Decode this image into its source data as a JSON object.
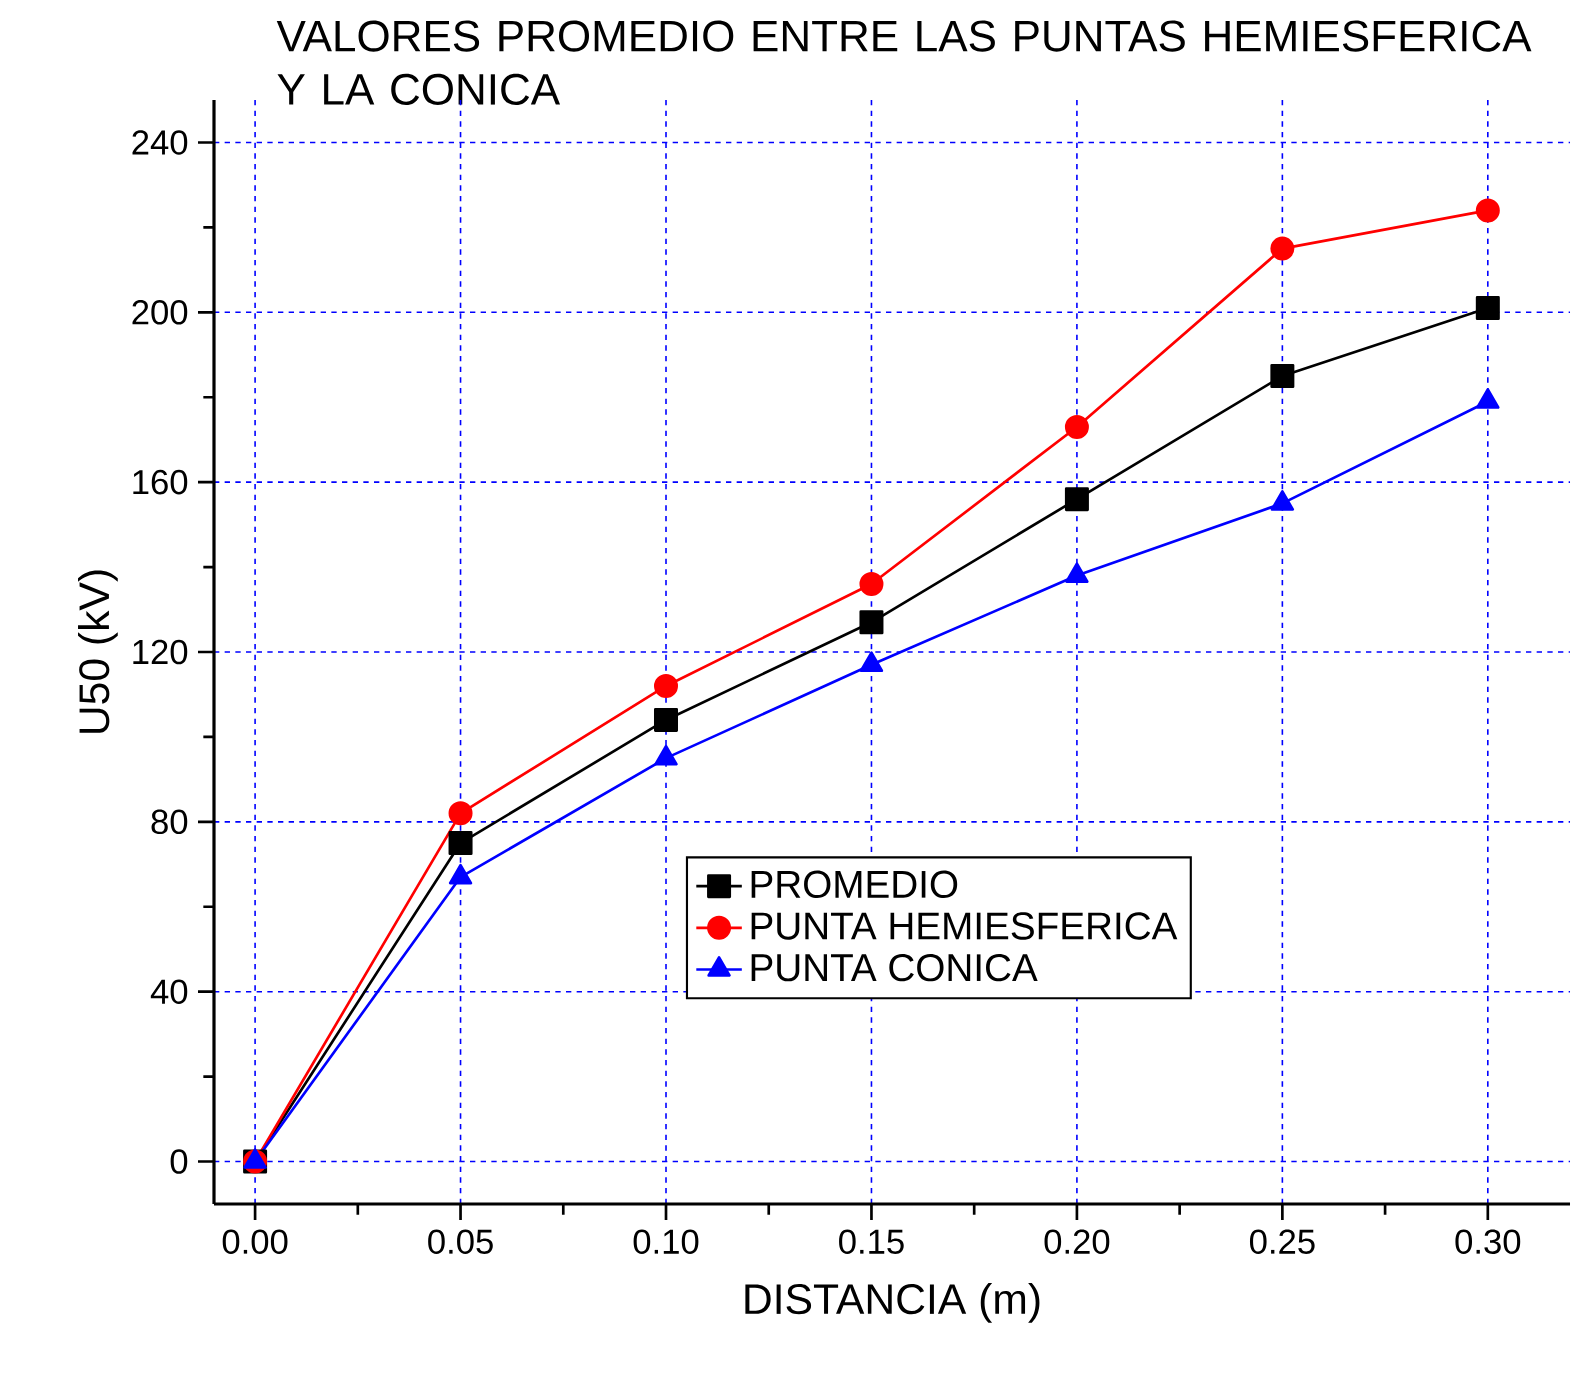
{
  "chart_data": {
    "type": "line",
    "title": "VALORES PROMEDIO ENTRE LAS PUNTAS HEMIESFERICA Y LA CONICA",
    "xlabel": "DISTANCIA (m)",
    "ylabel": "U50 (kV)",
    "x": [
      0.0,
      0.05,
      0.1,
      0.15,
      0.2,
      0.25,
      0.3
    ],
    "series": [
      {
        "name": "PROMEDIO",
        "color": "#000000",
        "marker": "square",
        "values": [
          0,
          75,
          104,
          127,
          156,
          185,
          201
        ]
      },
      {
        "name": "PUNTA HEMIESFERICA",
        "color": "#ff0000",
        "marker": "circle",
        "values": [
          0,
          82,
          112,
          136,
          173,
          215,
          224
        ]
      },
      {
        "name": "PUNTA CONICA",
        "color": "#0000ff",
        "marker": "triangle",
        "values": [
          0,
          67,
          95,
          117,
          138,
          155,
          179
        ]
      }
    ],
    "xlim": [
      -0.01,
      0.32
    ],
    "ylim": [
      -10,
      250
    ],
    "xticks": [
      {
        "value": 0,
        "label": "0.00"
      },
      {
        "value": 0.05,
        "label": "0.05"
      },
      {
        "value": 0.1,
        "label": "0.10"
      },
      {
        "value": 0.15,
        "label": "0.15"
      },
      {
        "value": 0.2,
        "label": "0.20"
      },
      {
        "value": 0.25,
        "label": "0.25"
      },
      {
        "value": 0.3,
        "label": "0.30"
      }
    ],
    "yticks": [
      0,
      40,
      80,
      120,
      160,
      200,
      240
    ],
    "grid": true,
    "legend": "bottom right",
    "line_style": "solid"
  }
}
